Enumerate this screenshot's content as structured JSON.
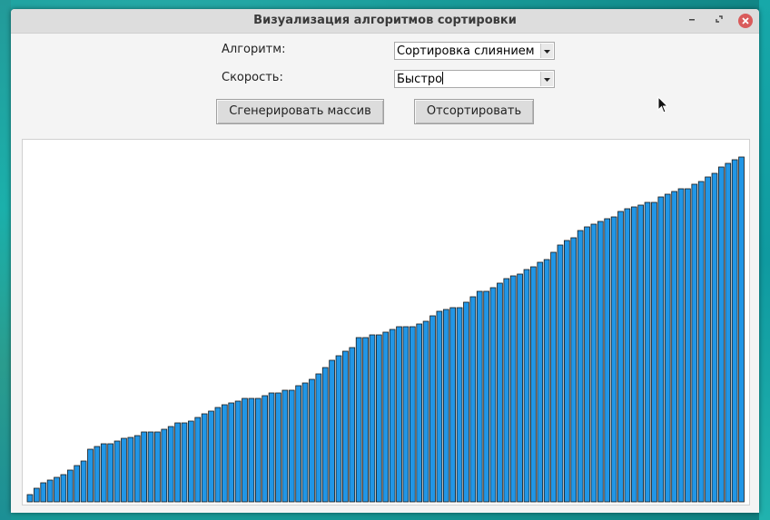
{
  "window": {
    "title": "Визуализация алгоритмов сортировки"
  },
  "controls": {
    "algorithm_label": "Алгоритм:",
    "algorithm_value": "Сортировка слиянием",
    "speed_label": "Скорость:",
    "speed_value": "Быстро",
    "generate_button": "Сгенерировать массив",
    "sort_button": "Отсортировать"
  },
  "colors": {
    "bar_fill": "#2196e6",
    "bar_stroke": "#1a1a1a",
    "close_button": "#d95b5b"
  },
  "icons": {
    "minimize": "minimize-icon",
    "maximize": "maximize-icon",
    "close": "close-icon",
    "dropdown": "chevron-down-icon",
    "cursor": "mouse-pointer-icon"
  },
  "chart_data": {
    "type": "bar",
    "values": [
      8,
      15,
      21,
      24,
      27,
      30,
      35,
      40,
      45,
      58,
      61,
      64,
      64,
      67,
      70,
      71,
      73,
      77,
      77,
      77,
      80,
      83,
      87,
      87,
      89,
      93,
      97,
      100,
      104,
      107,
      109,
      111,
      114,
      114,
      114,
      117,
      120,
      120,
      123,
      123,
      128,
      131,
      135,
      141,
      148,
      156,
      161,
      166,
      170,
      181,
      181,
      184,
      184,
      187,
      190,
      193,
      193,
      193,
      196,
      199,
      205,
      210,
      212,
      214,
      214,
      220,
      226,
      232,
      232,
      236,
      241,
      246,
      249,
      251,
      256,
      259,
      264,
      267,
      275,
      283,
      288,
      291,
      299,
      303,
      306,
      309,
      312,
      314,
      320,
      323,
      325,
      327,
      330,
      330,
      336,
      339,
      342,
      345,
      345,
      350,
      353,
      358,
      362,
      369,
      373,
      377,
      380
    ]
  }
}
